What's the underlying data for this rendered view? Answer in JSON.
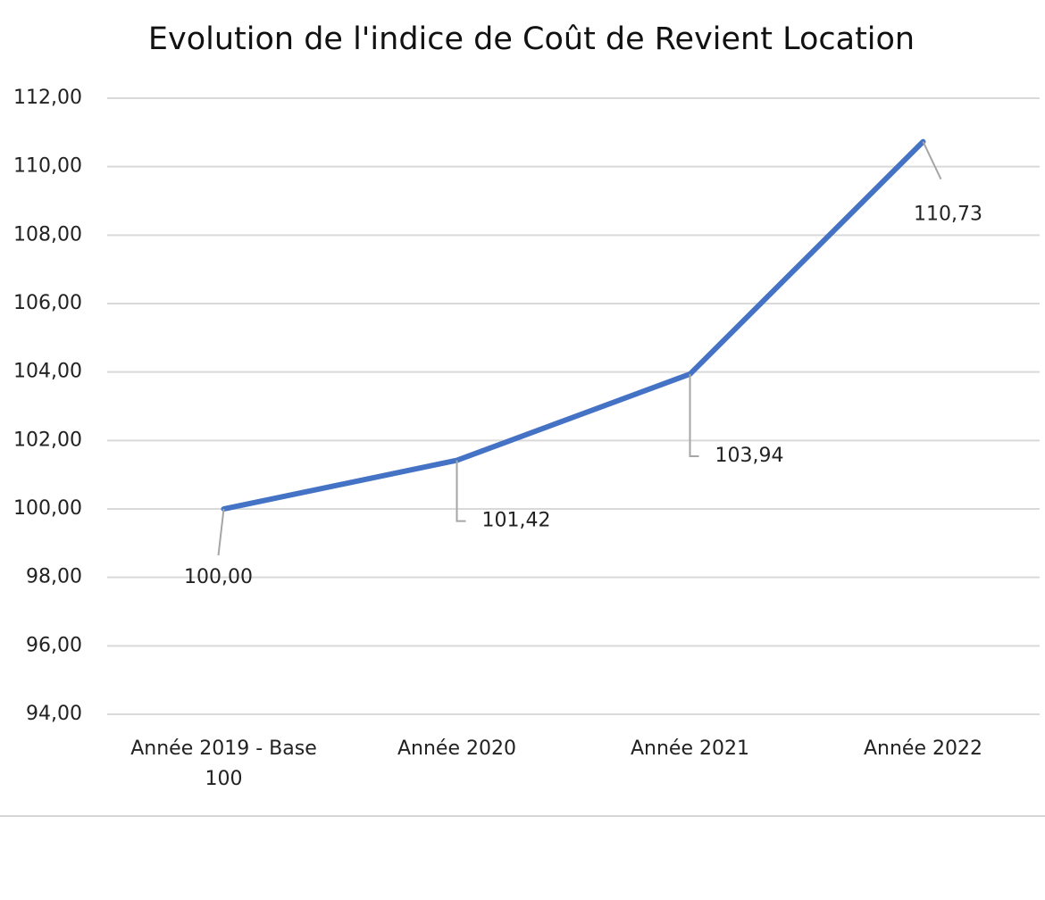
{
  "chart_data": {
    "type": "line",
    "title": "Evolution de l'indice de Coût de Revient Location",
    "categories": [
      "Année 2019 - Base 100",
      "Année 2020",
      "Année 2021",
      "Année 2022"
    ],
    "series": [
      {
        "color": "#4472c4",
        "values": [
          100,
          101.42,
          103.94,
          110.73
        ],
        "value_labels": [
          "100,00",
          "101,42",
          "103,94",
          "110,73"
        ]
      }
    ],
    "ylim": [
      94,
      112
    ],
    "yticks": [
      {
        "value": 94,
        "label": "94,00"
      },
      {
        "value": 96,
        "label": "96,00"
      },
      {
        "value": 98,
        "label": "98,00"
      },
      {
        "value": 100,
        "label": "100,00"
      },
      {
        "value": 102,
        "label": "102,00"
      },
      {
        "value": 104,
        "label": "104,00"
      },
      {
        "value": 106,
        "label": "106,00"
      },
      {
        "value": 108,
        "label": "108,00"
      },
      {
        "value": 110,
        "label": "110,00"
      },
      {
        "value": 112,
        "label": "112,00"
      }
    ],
    "grid": true
  }
}
